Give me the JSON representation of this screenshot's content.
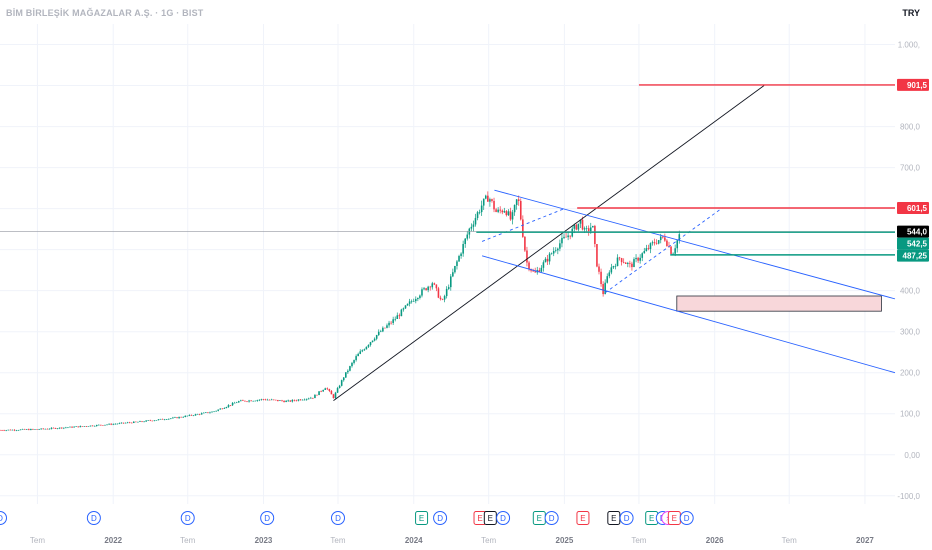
{
  "header": {
    "title": "BİM BİRLEŞİK MAĞAZALAR A.Ş. · 1G · BIST",
    "currency": "TRY"
  },
  "colors": {
    "candle_up": "#089981",
    "candle_down": "#f23645",
    "resistance": "#f23645",
    "support": "#089981",
    "channel": "#2962ff",
    "trendline": "#131722",
    "zone_fill": "#f8d7da",
    "zone_border": "#2a2e39",
    "grid": "#f0f3fa",
    "axis_text": "#b2b5be",
    "event_dividend": "#2962ff",
    "event_earnings": "#131722"
  },
  "chart_data": {
    "type": "candlestick",
    "symbol": "BİM BİRLEŞİK MAĞAZALAR A.Ş.",
    "interval": "1G",
    "exchange": "BIST",
    "currency": "TRY",
    "x_range": [
      "2021-04-01",
      "2027-03-15"
    ],
    "ylim": [
      -120,
      1050
    ],
    "y_ticks": [
      {
        "value": 1000,
        "label": "1.000,"
      },
      {
        "value": 900,
        "label": "900,0"
      },
      {
        "value": 800,
        "label": "800,0"
      },
      {
        "value": 700,
        "label": "700,0"
      },
      {
        "value": 600,
        "label": "600,0"
      },
      {
        "value": 500,
        "label": "500,0"
      },
      {
        "value": 400,
        "label": "400,0"
      },
      {
        "value": 300,
        "label": "300,0"
      },
      {
        "value": 200,
        "label": "200,0"
      },
      {
        "value": 100,
        "label": "100,0"
      },
      {
        "value": 0,
        "label": "0,00"
      },
      {
        "value": -100,
        "label": "-100,0"
      }
    ],
    "x_ticks": [
      {
        "date": "2021-07-01",
        "label": "Tem"
      },
      {
        "date": "2022-01-01",
        "label": "2022"
      },
      {
        "date": "2022-07-01",
        "label": "Tem"
      },
      {
        "date": "2023-01-01",
        "label": "2023"
      },
      {
        "date": "2023-07-01",
        "label": "Tem"
      },
      {
        "date": "2024-01-01",
        "label": "2024"
      },
      {
        "date": "2024-07-01",
        "label": "Tem"
      },
      {
        "date": "2025-01-01",
        "label": "2025"
      },
      {
        "date": "2025-07-01",
        "label": "Tem"
      },
      {
        "date": "2026-01-01",
        "label": "2026"
      },
      {
        "date": "2026-07-01",
        "label": "Tem"
      },
      {
        "date": "2027-01-01",
        "label": "2027"
      }
    ],
    "price_path": [
      [
        "2021-04-01",
        60
      ],
      [
        "2021-07-01",
        62
      ],
      [
        "2021-10-01",
        68
      ],
      [
        "2022-01-01",
        75
      ],
      [
        "2022-03-01",
        80
      ],
      [
        "2022-06-01",
        90
      ],
      [
        "2022-09-01",
        105
      ],
      [
        "2022-11-01",
        130
      ],
      [
        "2023-01-01",
        135
      ],
      [
        "2023-03-01",
        130
      ],
      [
        "2023-05-01",
        140
      ],
      [
        "2023-06-01",
        165
      ],
      [
        "2023-06-20",
        140
      ],
      [
        "2023-07-15",
        190
      ],
      [
        "2023-08-15",
        240
      ],
      [
        "2023-10-01",
        290
      ],
      [
        "2023-11-15",
        330
      ],
      [
        "2024-01-01",
        380
      ],
      [
        "2024-02-15",
        420
      ],
      [
        "2024-03-10",
        370
      ],
      [
        "2024-04-15",
        470
      ],
      [
        "2024-05-15",
        550
      ],
      [
        "2024-06-15",
        610
      ],
      [
        "2024-07-01",
        630
      ],
      [
        "2024-07-20",
        590
      ],
      [
        "2024-08-10",
        600
      ],
      [
        "2024-08-25",
        570
      ],
      [
        "2024-09-10",
        630
      ],
      [
        "2024-10-01",
        470
      ],
      [
        "2024-10-20",
        440
      ],
      [
        "2024-11-15",
        470
      ],
      [
        "2024-12-15",
        510
      ],
      [
        "2025-01-15",
        540
      ],
      [
        "2025-02-10",
        570
      ],
      [
        "2025-02-20",
        540
      ],
      [
        "2025-03-10",
        560
      ],
      [
        "2025-03-20",
        470
      ],
      [
        "2025-04-05",
        395
      ],
      [
        "2025-04-20",
        450
      ],
      [
        "2025-05-15",
        480
      ],
      [
        "2025-06-10",
        460
      ],
      [
        "2025-07-10",
        490
      ],
      [
        "2025-08-10",
        520
      ],
      [
        "2025-09-01",
        530
      ],
      [
        "2025-09-20",
        490
      ],
      [
        "2025-10-10",
        544
      ]
    ],
    "horizontal_levels": [
      {
        "name": "resistance-901",
        "price": 901.5,
        "label": "901,5",
        "color": "#f23645",
        "start": "2025-07-01"
      },
      {
        "name": "resistance-601",
        "price": 601.5,
        "label": "601,5",
        "color": "#f23645",
        "start": "2025-02-01"
      },
      {
        "name": "support-542",
        "price": 542.5,
        "label": "542,5",
        "color": "#089981",
        "start": "2024-06-01"
      },
      {
        "name": "support-487",
        "price": 487.25,
        "label": "487,25",
        "color": "#089981",
        "start": "2025-09-15"
      }
    ],
    "current_price": {
      "price": 544.0,
      "label": "544,0"
    },
    "trendlines": [
      {
        "name": "long-term-trendline",
        "from": [
          "2023-06-20",
          132
        ],
        "to": [
          "2026-05-01",
          900
        ],
        "color": "#131722"
      },
      {
        "name": "channel-upper",
        "from": [
          "2024-07-15",
          645
        ],
        "to": [
          "2027-03-15",
          380
        ],
        "color": "#2962ff"
      },
      {
        "name": "channel-lower",
        "from": [
          "2024-06-15",
          485
        ],
        "to": [
          "2027-03-15",
          200
        ],
        "color": "#2962ff"
      },
      {
        "name": "sub-channel-a",
        "from": [
          "2024-06-15",
          520
        ],
        "to": [
          "2025-01-01",
          600
        ],
        "color": "#2962ff",
        "dashed": true
      },
      {
        "name": "sub-channel-b",
        "from": [
          "2025-04-10",
          395
        ],
        "to": [
          "2026-01-20",
          602
        ],
        "color": "#2962ff",
        "dashed": true
      }
    ],
    "zone": {
      "name": "demand-zone",
      "from": "2025-10-01",
      "to": "2027-02-10",
      "top": 387,
      "bottom": 350
    },
    "events": [
      {
        "date": "2021-04-01",
        "type": "D"
      },
      {
        "date": "2021-11-15",
        "type": "D"
      },
      {
        "date": "2022-07-01",
        "type": "D"
      },
      {
        "date": "2023-01-10",
        "type": "D"
      },
      {
        "date": "2023-07-01",
        "type": "D"
      },
      {
        "date": "2024-01-20",
        "type": "E"
      },
      {
        "date": "2024-03-05",
        "type": "D"
      },
      {
        "date": "2024-06-10",
        "type": "E"
      },
      {
        "date": "2024-07-05",
        "type": "E"
      },
      {
        "date": "2024-08-05",
        "type": "D"
      },
      {
        "date": "2024-11-01",
        "type": "E"
      },
      {
        "date": "2024-12-01",
        "type": "D"
      },
      {
        "date": "2025-02-15",
        "type": "E"
      },
      {
        "date": "2025-05-01",
        "type": "E"
      },
      {
        "date": "2025-06-01",
        "type": "D"
      },
      {
        "date": "2025-08-01",
        "type": "E"
      },
      {
        "date": "2025-08-28",
        "type": "D"
      },
      {
        "date": "2025-09-10",
        "type": "S"
      },
      {
        "date": "2025-09-25",
        "type": "E"
      },
      {
        "date": "2025-10-25",
        "type": "D"
      }
    ]
  }
}
